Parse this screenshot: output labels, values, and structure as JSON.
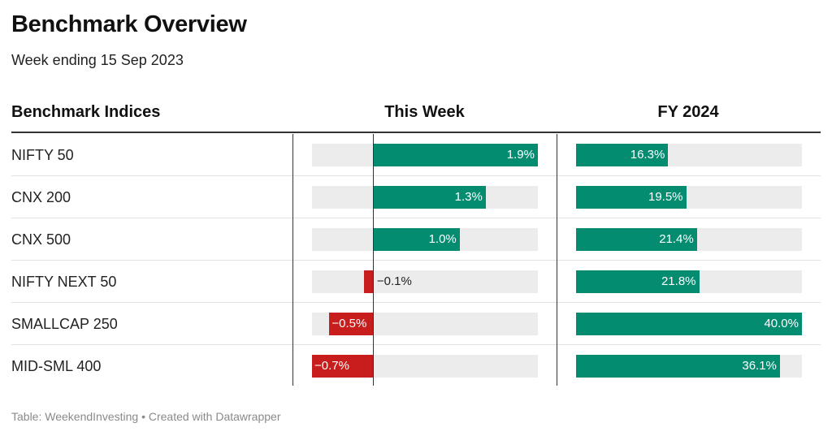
{
  "title": "Benchmark Overview",
  "subtitle": "Week ending 15 Sep 2023",
  "headers": {
    "name": "Benchmark Indices",
    "week": "This Week",
    "fy": "FY 2024"
  },
  "footer": "Table: WeekendInvesting • Created with Datawrapper",
  "colors": {
    "positive": "#048c70",
    "negative": "#c71e1d",
    "track": "#ececec"
  },
  "chart_data": {
    "type": "table",
    "columns": [
      "Benchmark Indices",
      "This Week",
      "FY 2024"
    ],
    "week_range": [
      -0.7,
      1.9
    ],
    "fy_range": [
      0,
      40.0
    ],
    "rows": [
      {
        "name": "NIFTY 50",
        "week": 1.9,
        "week_label": "1.9%",
        "fy": 16.3,
        "fy_label": "16.3%"
      },
      {
        "name": "CNX 200",
        "week": 1.3,
        "week_label": "1.3%",
        "fy": 19.5,
        "fy_label": "19.5%"
      },
      {
        "name": "CNX 500",
        "week": 1.0,
        "week_label": "1.0%",
        "fy": 21.4,
        "fy_label": "21.4%"
      },
      {
        "name": "NIFTY NEXT 50",
        "week": -0.1,
        "week_label": "−0.1%",
        "fy": 21.8,
        "fy_label": "21.8%"
      },
      {
        "name": "SMALLCAP 250",
        "week": -0.5,
        "week_label": "−0.5%",
        "fy": 40.0,
        "fy_label": "40.0%"
      },
      {
        "name": "MID-SML 400",
        "week": -0.7,
        "week_label": "−0.7%",
        "fy": 36.1,
        "fy_label": "36.1%"
      }
    ]
  }
}
